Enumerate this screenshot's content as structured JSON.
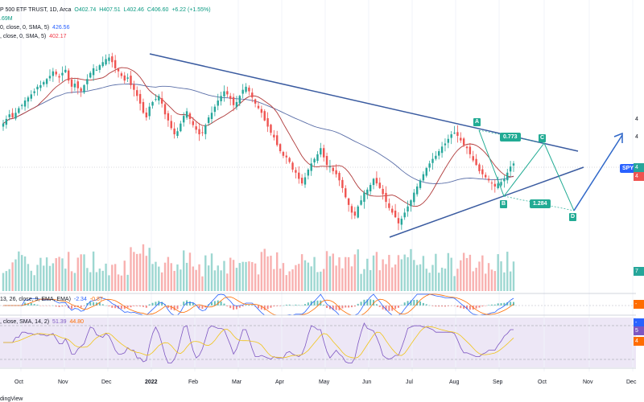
{
  "header": {
    "symbol_line": "P 500 ETF TRUST, 1D, Arca",
    "open": "O402.74",
    "high": "H407.51",
    "low": "L402.46",
    "close": "C406.60",
    "change": "+6.22 (+1.55%)",
    "volume": ".69M",
    "sma1_params": "0, close, 0, SMA, 5)",
    "sma1_value": "426.56",
    "sma2_params": ", close, 0, SMA, 5)",
    "sma2_value": "402.17"
  },
  "macd": {
    "params": "13, 26, close, 9, EMA, EMA)",
    "v1": "-2.34",
    "v2": "-0.87"
  },
  "rsi": {
    "params": ", close, SMA, 14, 2)",
    "v1": "51.39",
    "v2": "44.80"
  },
  "wave_labels": {
    "A": "A",
    "B": "B",
    "C": "C",
    "D": "D"
  },
  "fib": {
    "upper": "0.773",
    "lower": "1.284"
  },
  "price_tags": {
    "symbol": "SPY"
  },
  "x_axis": [
    "Oct",
    "Nov",
    "Dec",
    "2022",
    "Feb",
    "Mar",
    "Apr",
    "May",
    "Jun",
    "Jul",
    "Aug",
    "Sep",
    "Oct",
    "Nov",
    "Dec"
  ],
  "brand": "dingView",
  "colors": {
    "up": "#26a69a",
    "down": "#ef5350",
    "trendline": "#3a5ba0",
    "sma_short": "#b03a3a",
    "sma_long": "#5b6fa8",
    "projection": "#22ab94",
    "rsi_bg": "#ede7f6"
  },
  "chart_data": {
    "type": "candlestick",
    "note_series": "SPDR S&P 500 ETF daily candles Oct 2021 - Sep 2022 (approximate)",
    "closes": [
      434,
      437,
      440,
      438,
      441,
      444,
      446,
      449,
      451,
      453,
      455,
      458,
      459,
      461,
      463,
      465,
      468,
      466,
      464,
      467,
      469,
      462,
      458,
      460,
      457,
      455,
      459,
      463,
      467,
      470,
      469,
      472,
      474,
      476,
      477,
      474,
      470,
      468,
      465,
      462,
      464,
      459,
      456,
      452,
      447,
      441,
      438,
      445,
      448,
      450,
      452,
      447,
      440,
      436,
      431,
      427,
      429,
      434,
      439,
      442,
      437,
      433,
      430,
      427,
      428,
      433,
      438,
      441,
      445,
      449,
      452,
      455,
      453,
      450,
      446,
      448,
      452,
      456,
      458,
      455,
      451,
      447,
      444,
      441,
      436,
      432,
      428,
      425,
      420,
      416,
      413,
      412,
      409,
      404,
      402,
      398,
      395,
      399,
      404,
      408,
      411,
      414,
      418,
      412,
      407,
      406,
      403,
      401,
      397,
      392,
      386,
      381,
      376,
      374,
      380,
      384,
      389,
      391,
      394,
      398,
      395,
      392,
      388,
      383,
      379,
      376,
      373,
      369,
      372,
      376,
      380,
      384,
      389,
      393,
      397,
      401,
      405,
      408,
      411,
      413,
      416,
      419,
      421,
      424,
      427,
      428,
      426,
      423,
      420,
      418,
      414,
      410,
      407,
      403,
      401,
      399,
      397,
      395,
      393,
      395,
      396,
      398,
      402,
      406,
      408
    ]
  }
}
